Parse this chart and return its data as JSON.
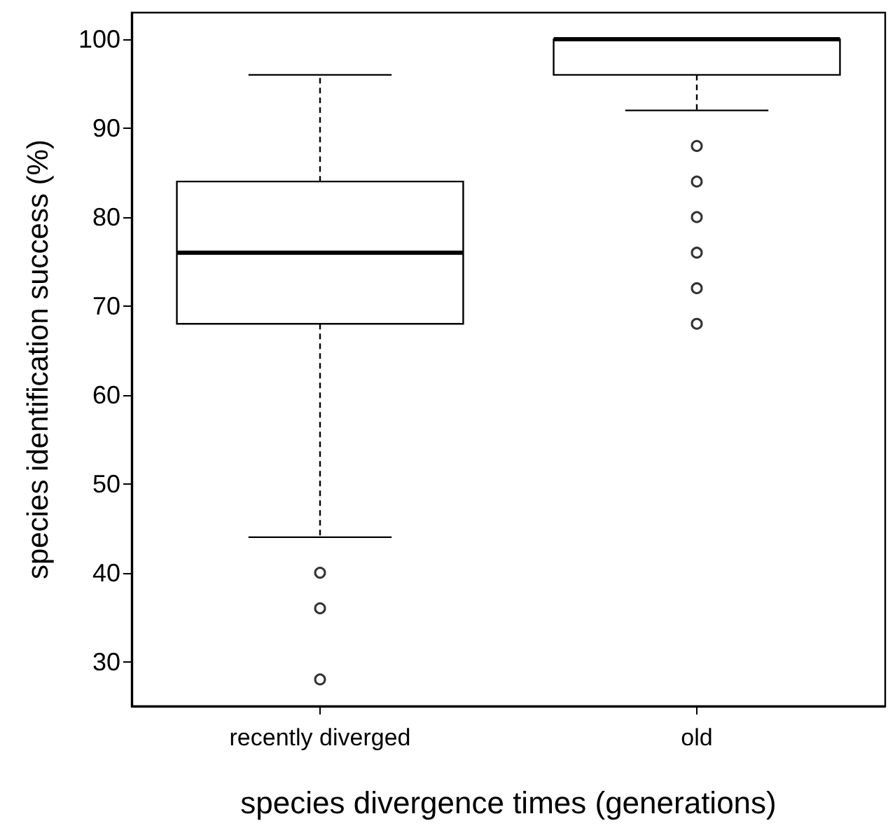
{
  "chart_data": {
    "type": "box",
    "xlabel": "species divergence times (generations)",
    "ylabel": "species identification success (%)",
    "categories": [
      "recently diverged",
      "old"
    ],
    "boxes": [
      {
        "low": 44,
        "q1": 68,
        "median": 76,
        "q3": 84,
        "high": 96,
        "outliers": [
          40,
          36,
          28
        ]
      },
      {
        "low": 92,
        "q1": 96,
        "median": 100,
        "q3": 100,
        "high": 100,
        "outliers": [
          88,
          84,
          80,
          76,
          72,
          68
        ]
      }
    ],
    "color": "#000000",
    "ylim": [
      25,
      103
    ],
    "yticks": [
      30,
      40,
      50,
      60,
      70,
      80,
      90,
      100
    ],
    "grid": false
  }
}
